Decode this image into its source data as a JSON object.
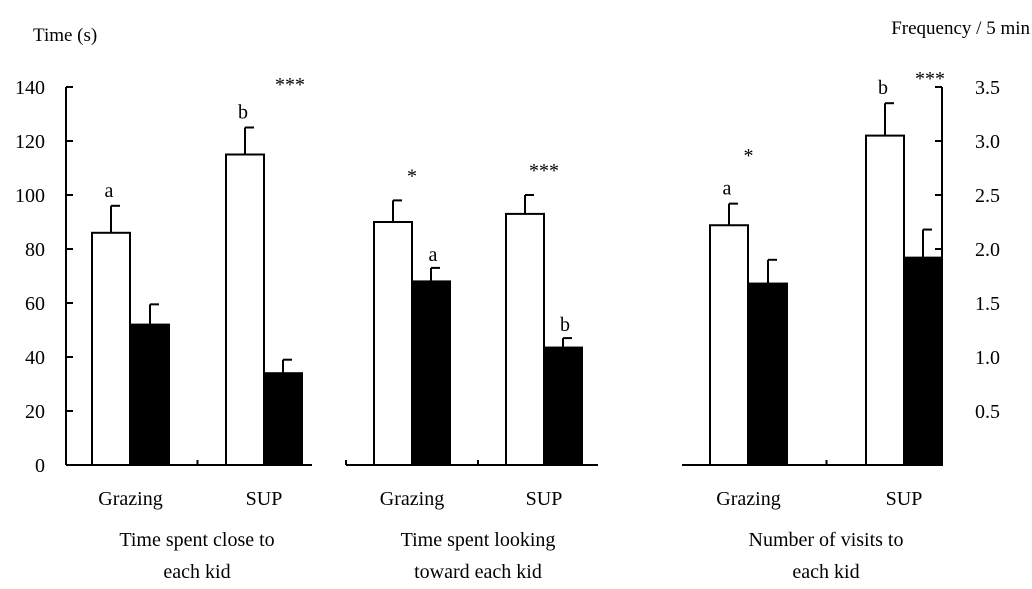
{
  "chart_data": {
    "type": "bar",
    "left_axis": {
      "title": "Time (s)",
      "range": [
        0,
        140
      ],
      "ticks": [
        0,
        20,
        40,
        60,
        80,
        100,
        120,
        140
      ],
      "tick_labels": [
        "0",
        "20",
        "40",
        "60",
        "80",
        "100",
        "120",
        "140"
      ]
    },
    "right_axis": {
      "title": "Frequency / 5 min",
      "range": [
        0,
        3.5
      ],
      "ticks": [
        0.5,
        1.0,
        1.5,
        2.0,
        2.5,
        3.0,
        3.5
      ],
      "tick_labels": [
        "0.5",
        "1.0",
        "1.5",
        "2.0",
        "2.5",
        "3.0",
        "3.5"
      ]
    },
    "bar_colors": {
      "open": "#ffffff",
      "filled": "#000000"
    },
    "panels": [
      {
        "axis": "left",
        "group_label": [
          "Time spent close to",
          "each kid"
        ],
        "categories": [
          {
            "label": "Grazing",
            "open": 86,
            "open_err": 10,
            "filled": 52,
            "filled_err": 7.5,
            "open_mark": "a",
            "filled_mark": "",
            "sig": ""
          },
          {
            "label": "SUP",
            "open": 115,
            "open_err": 10,
            "filled": 34,
            "filled_err": 5,
            "open_mark": "b",
            "filled_mark": "",
            "sig": "***"
          }
        ]
      },
      {
        "axis": "left",
        "group_label": [
          "Time spent looking",
          "toward each kid"
        ],
        "categories": [
          {
            "label": "Grazing",
            "open": 90,
            "open_err": 8,
            "filled": 68,
            "filled_err": 5,
            "open_mark": "",
            "filled_mark": "a",
            "sig": "*"
          },
          {
            "label": "SUP",
            "open": 93,
            "open_err": 7,
            "filled": 43.5,
            "filled_err": 3.5,
            "open_mark": "",
            "filled_mark": "b",
            "sig": "***"
          }
        ]
      },
      {
        "axis": "right",
        "group_label": [
          "Number of  visits to",
          "each kid"
        ],
        "categories": [
          {
            "label": "Grazing",
            "open": 2.22,
            "open_err": 0.2,
            "filled": 1.68,
            "filled_err": 0.22,
            "open_mark": "a",
            "filled_mark": "",
            "sig": "*"
          },
          {
            "label": "SUP",
            "open": 3.05,
            "open_err": 0.3,
            "filled": 1.92,
            "filled_err": 0.26,
            "open_mark": "b",
            "filled_mark": "",
            "sig": "***"
          }
        ]
      }
    ]
  }
}
